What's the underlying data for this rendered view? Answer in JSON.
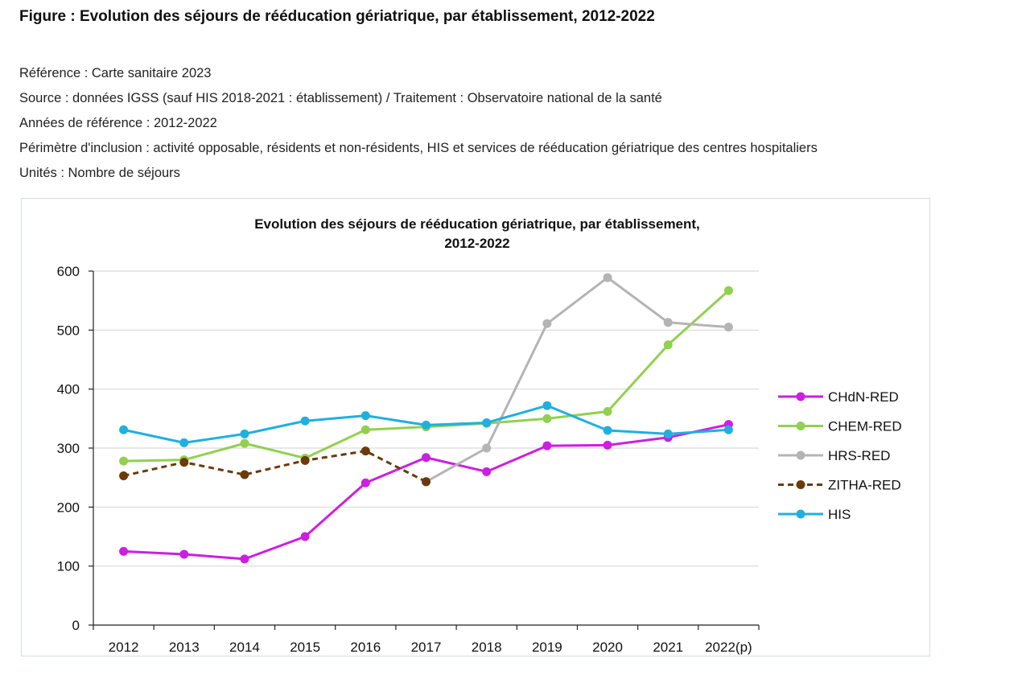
{
  "figure": {
    "title": "Figure : Evolution des séjours de rééducation gériatrique, par établissement, 2012-2022",
    "reference": "Référence : Carte sanitaire 2023",
    "source": "Source : données IGSS (sauf HIS 2018-2021 : établissement) / Traitement : Observatoire national de la santé",
    "years": "Années de référence : 2012-2022",
    "scope": "Périmètre d'inclusion : activité opposable, résidents et non-résidents, HIS et services de rééducation gériatrique des centres hospitaliers",
    "units": "Unités : Nombre de séjours"
  },
  "chart_data": {
    "type": "line",
    "title_line1": "Evolution des séjours de rééducation gériatrique, par établissement,",
    "title_line2": "2012-2022",
    "categories": [
      "2012",
      "2013",
      "2014",
      "2015",
      "2016",
      "2017",
      "2018",
      "2019",
      "2020",
      "2021",
      "2022(p)"
    ],
    "ylim": [
      0,
      600
    ],
    "yticks": [
      0,
      100,
      200,
      300,
      400,
      500,
      600
    ],
    "grid": true,
    "legend_position": "right",
    "series": [
      {
        "name": "CHdN-RED",
        "color": "#cc1fe0",
        "dashed": false,
        "values": [
          125,
          120,
          112,
          150,
          241,
          284,
          260,
          304,
          305,
          318,
          340
        ]
      },
      {
        "name": "CHEM-RED",
        "color": "#92d050",
        "dashed": false,
        "values": [
          278,
          280,
          308,
          283,
          331,
          336,
          342,
          350,
          362,
          475,
          567
        ]
      },
      {
        "name": "HRS-RED",
        "color": "#b4b4b4",
        "dashed": false,
        "values": [
          null,
          null,
          null,
          null,
          null,
          243,
          300,
          511,
          589,
          513,
          505
        ]
      },
      {
        "name": "ZITHA-RED",
        "color": "#6b3a0b",
        "dashed": true,
        "values": [
          253,
          276,
          255,
          279,
          295,
          243,
          null,
          null,
          null,
          null,
          null
        ]
      },
      {
        "name": "HIS",
        "color": "#1fb0e0",
        "dashed": false,
        "values": [
          331,
          309,
          324,
          346,
          355,
          339,
          343,
          372,
          330,
          324,
          331
        ]
      }
    ]
  }
}
